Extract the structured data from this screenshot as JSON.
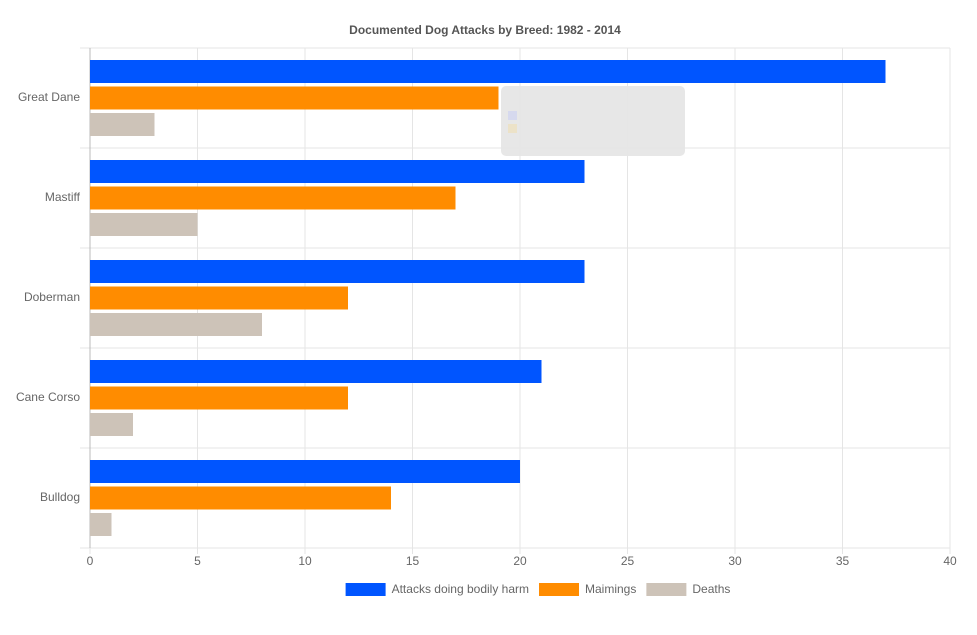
{
  "chart_data": {
    "type": "bar",
    "orientation": "horizontal",
    "title": "Documented Dog Attacks by Breed: 1982 - 2014",
    "categories": [
      "Great Dane",
      "Mastiff",
      "Doberman",
      "Cane Corso",
      "Bulldog"
    ],
    "series": [
      {
        "name": "Attacks doing bodily harm",
        "color": "#0055ff",
        "values": [
          37,
          23,
          23,
          21,
          20
        ]
      },
      {
        "name": "Maimings",
        "color": "#ff8c00",
        "values": [
          19,
          17,
          12,
          12,
          14
        ]
      },
      {
        "name": "Deaths",
        "color": "#cdc3b8",
        "values": [
          3,
          5,
          8,
          2,
          1
        ]
      }
    ],
    "xlim": [
      0,
      40
    ],
    "xticks": [
      0,
      5,
      10,
      15,
      20,
      25,
      30,
      35,
      40
    ],
    "grid": true,
    "legend": "bottom"
  }
}
